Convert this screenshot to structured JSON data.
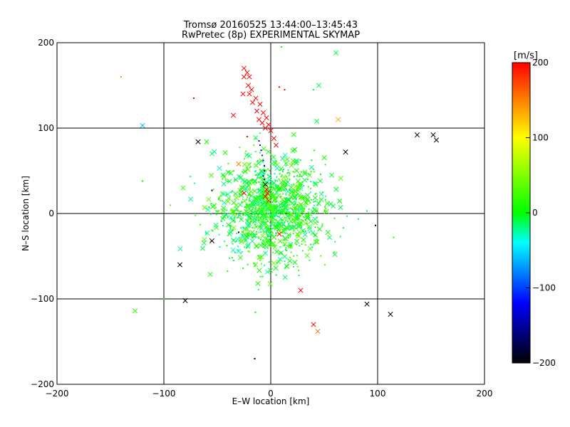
{
  "chart_data": {
    "type": "scatter",
    "title": "Tromsø 20160525 13:44:00–13:45:43",
    "subtitle": "RwPretec (8p) EXPERIMENTAL SKYMAP",
    "xlabel": "E–W location [km]",
    "ylabel": "N–S location [km]",
    "xlim": [
      -200,
      200
    ],
    "ylim": [
      -200,
      200
    ],
    "xticks": [
      -200,
      -100,
      0,
      100,
      200
    ],
    "yticks": [
      -200,
      -100,
      0,
      100,
      200
    ],
    "grid": true,
    "marker_types": [
      "small-dot",
      "x-cross"
    ],
    "colorbar": {
      "label": "[m/s]",
      "range": [
        -200,
        200
      ],
      "ticks": [
        -200,
        -100,
        0,
        100,
        200
      ],
      "colormap": [
        "#000000",
        "#0000ff",
        "#00ffff",
        "#00ff00",
        "#ffff00",
        "#ff0000"
      ]
    },
    "points": [
      {
        "x": -25,
        "y": 170,
        "v": 200,
        "m": "x"
      },
      {
        "x": -22,
        "y": 165,
        "v": 200,
        "m": "x"
      },
      {
        "x": -20,
        "y": 160,
        "v": 200,
        "m": "x"
      },
      {
        "x": -25,
        "y": 160,
        "v": 200,
        "m": "x"
      },
      {
        "x": -21,
        "y": 150,
        "v": 200,
        "m": "x"
      },
      {
        "x": -18,
        "y": 145,
        "v": 200,
        "m": "x"
      },
      {
        "x": -26,
        "y": 140,
        "v": 200,
        "m": "x"
      },
      {
        "x": -20,
        "y": 140,
        "v": 200,
        "m": "x"
      },
      {
        "x": -14,
        "y": 135,
        "v": 200,
        "m": "x"
      },
      {
        "x": -17,
        "y": 130,
        "v": 200,
        "m": "x"
      },
      {
        "x": -10,
        "y": 128,
        "v": 200,
        "m": "x"
      },
      {
        "x": -13,
        "y": 120,
        "v": 200,
        "m": "x"
      },
      {
        "x": -7,
        "y": 118,
        "v": 200,
        "m": "x"
      },
      {
        "x": -11,
        "y": 110,
        "v": 200,
        "m": "x"
      },
      {
        "x": -4,
        "y": 112,
        "v": 200,
        "m": "x"
      },
      {
        "x": -8,
        "y": 106,
        "v": 200,
        "m": "x"
      },
      {
        "x": -2,
        "y": 104,
        "v": 200,
        "m": "x"
      },
      {
        "x": -5,
        "y": 100,
        "v": 200,
        "m": "x"
      },
      {
        "x": 0,
        "y": 97,
        "v": 200,
        "m": "x"
      },
      {
        "x": 3,
        "y": 88,
        "v": 200,
        "m": "x"
      },
      {
        "x": 5,
        "y": 80,
        "v": 200,
        "m": "x"
      },
      {
        "x": -35,
        "y": 115,
        "v": 200,
        "m": "x"
      },
      {
        "x": 8,
        "y": 148,
        "v": 200,
        "m": "dot"
      },
      {
        "x": 13,
        "y": 145,
        "v": 200,
        "m": "dot"
      },
      {
        "x": -72,
        "y": 135,
        "v": 200,
        "m": "dot"
      },
      {
        "x": -22,
        "y": 90,
        "v": 200,
        "m": "dot"
      },
      {
        "x": -140,
        "y": 160,
        "v": 140,
        "m": "dot"
      },
      {
        "x": -120,
        "y": 103,
        "v": -60,
        "m": "x"
      },
      {
        "x": 63,
        "y": 110,
        "v": 130,
        "m": "x"
      },
      {
        "x": 61,
        "y": 188,
        "v": -10,
        "m": "x"
      },
      {
        "x": 45,
        "y": 150,
        "v": -10,
        "m": "x"
      },
      {
        "x": 40,
        "y": 145,
        "v": -10,
        "m": "dot"
      },
      {
        "x": 43,
        "y": 108,
        "v": -10,
        "m": "x"
      },
      {
        "x": 10,
        "y": 195,
        "v": 0,
        "m": "dot"
      },
      {
        "x": -68,
        "y": 84,
        "v": -200,
        "m": "x"
      },
      {
        "x": 70,
        "y": 72,
        "v": -200,
        "m": "x"
      },
      {
        "x": 137,
        "y": 92,
        "v": -200,
        "m": "x"
      },
      {
        "x": 152,
        "y": 92,
        "v": -200,
        "m": "x"
      },
      {
        "x": 155,
        "y": 86,
        "v": -200,
        "m": "x"
      },
      {
        "x": -11,
        "y": 85,
        "v": -120,
        "m": "dot"
      },
      {
        "x": -10,
        "y": 80,
        "v": -120,
        "m": "dot"
      },
      {
        "x": -9,
        "y": 74,
        "v": -120,
        "m": "dot"
      },
      {
        "x": -8,
        "y": 68,
        "v": -110,
        "m": "dot"
      },
      {
        "x": -7,
        "y": 62,
        "v": -120,
        "m": "dot"
      },
      {
        "x": -6,
        "y": 56,
        "v": -140,
        "m": "dot"
      },
      {
        "x": -6,
        "y": 50,
        "v": -150,
        "m": "dot"
      },
      {
        "x": -7,
        "y": 44,
        "v": -170,
        "m": "dot"
      },
      {
        "x": -6,
        "y": 40,
        "v": -180,
        "m": "dot"
      },
      {
        "x": -5,
        "y": 34,
        "v": -200,
        "m": "x"
      },
      {
        "x": -4,
        "y": 28,
        "v": 200,
        "m": "x"
      },
      {
        "x": -3,
        "y": 24,
        "v": 200,
        "m": "x"
      },
      {
        "x": -5,
        "y": 20,
        "v": 200,
        "m": "x"
      },
      {
        "x": -2,
        "y": 15,
        "v": 190,
        "m": "x"
      },
      {
        "x": 8,
        "y": -24,
        "v": 200,
        "m": "x"
      },
      {
        "x": -25,
        "y": 24,
        "v": 200,
        "m": "x"
      },
      {
        "x": -30,
        "y": 58,
        "v": 150,
        "m": "x"
      },
      {
        "x": -24,
        "y": 28,
        "v": -30,
        "m": "x"
      },
      {
        "x": -55,
        "y": -32,
        "v": -200,
        "m": "x"
      },
      {
        "x": -85,
        "y": -60,
        "v": -200,
        "m": "x"
      },
      {
        "x": -80,
        "y": -102,
        "v": -200,
        "m": "x"
      },
      {
        "x": 90,
        "y": -106,
        "v": -200,
        "m": "x"
      },
      {
        "x": 112,
        "y": -118,
        "v": -200,
        "m": "x"
      },
      {
        "x": -15,
        "y": -170,
        "v": -200,
        "m": "dot"
      },
      {
        "x": 98,
        "y": -14,
        "v": -200,
        "m": "dot"
      },
      {
        "x": -30,
        "y": -22,
        "v": -200,
        "m": "dot"
      },
      {
        "x": -55,
        "y": 27,
        "v": -200,
        "m": "dot"
      },
      {
        "x": 28,
        "y": -90,
        "v": 200,
        "m": "x"
      },
      {
        "x": 40,
        "y": -130,
        "v": 200,
        "m": "x"
      },
      {
        "x": 44,
        "y": -138,
        "v": 150,
        "m": "x"
      },
      {
        "x": -127,
        "y": -114,
        "v": 20,
        "m": "x"
      },
      {
        "x": -82,
        "y": 30,
        "v": 20,
        "m": "x"
      },
      {
        "x": -60,
        "y": 84,
        "v": 10,
        "m": "x"
      },
      {
        "x": -55,
        "y": 70,
        "v": -10,
        "m": "x"
      },
      {
        "x": -12,
        "y": -82,
        "v": 10,
        "m": "x"
      },
      {
        "x": 57,
        "y": 45,
        "v": -10,
        "m": "x"
      },
      {
        "x": 55,
        "y": -28,
        "v": -10,
        "m": "x"
      },
      {
        "x": 60,
        "y": -48,
        "v": -10,
        "m": "x"
      },
      {
        "x": 90,
        "y": 3,
        "v": -10,
        "m": "dot"
      },
      {
        "x": 115,
        "y": -28,
        "v": 10,
        "m": "dot"
      },
      {
        "x": -100,
        "y": -100,
        "v": 10,
        "m": "dot"
      },
      {
        "x": -120,
        "y": 38,
        "v": 0,
        "m": "dot"
      }
    ],
    "cluster": {
      "x": 0,
      "y": 5,
      "sigma_x": 25,
      "sigma_y": 30,
      "count": 1150,
      "v": [
        -30,
        40
      ]
    }
  }
}
